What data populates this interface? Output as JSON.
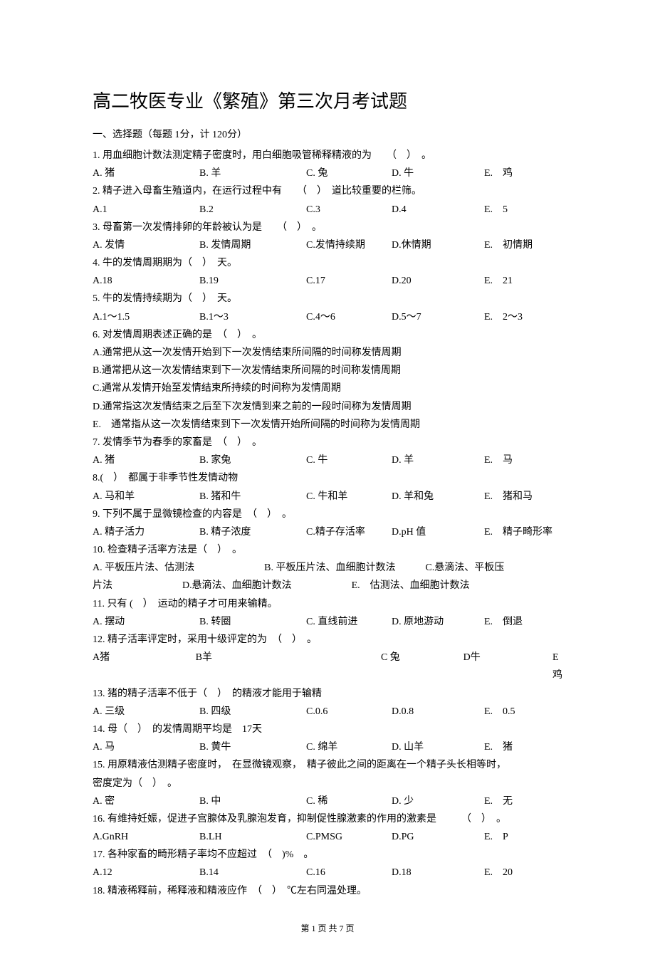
{
  "title": "高二牧医专业《繁殖》第三次月考试题",
  "section_header": "一、选择题（每题 1分，计 120分）",
  "footer": "第 1 页 共 7 页",
  "q1": {
    "text": "1. 用血细胞计数法测定精子密度时，用白细胞吸管稀释精液的为　　（　）　。",
    "a": "A. 猪",
    "b": "B. 羊",
    "c": "C. 兔",
    "d": "D. 牛",
    "e": "E.　鸡"
  },
  "q2": {
    "text": "2. 精子进入母畜生殖道内，在运行过程中有　　（　）　道比较重要的栏筛。",
    "a": "A.1",
    "b": "B.2",
    "c": "C.3",
    "d": "D.4",
    "e": "E.　5"
  },
  "q3": {
    "text": "3. 母畜第一次发情排卵的年龄被认为是　　（　）　。",
    "a": "A. 发情",
    "b": "B. 发情周期",
    "c": "C.发情持续期",
    "d": "D.休情期",
    "e": "E.　初情期"
  },
  "q4": {
    "text": "4. 牛的发情周期期为（　）　天。",
    "a": "A.18",
    "b": "B.19",
    "c": "C.17",
    "d": "D.20",
    "e": "E.　21"
  },
  "q5": {
    "text": "5. 牛的发情持续期为（　）　天。",
    "a": "A.1～1.5",
    "b": "B.1～3",
    "c": "C.4～6",
    "d": "D.5～7",
    "e": "E.　2～3"
  },
  "q6": {
    "text": "6. 对发情周期表述正确的是　（　）　。",
    "a": "A.通常把从这一次发情开始到下一次发情结束所间隔的时间称发情周期",
    "b": "B.通常把从这一次发情结束到下一次发情结束所间隔的时间称发情周期",
    "c": "C.通常从发情开始至发情结束所持续的时间称为发情周期",
    "d": "D.通常指这次发情结束之后至下次发情到来之前的一段时间称为发情周期",
    "e": "E.　通常指从这一次发情结束到下一次发情开始所间隔的时间称为发情周期"
  },
  "q7": {
    "text": "7. 发情季节为春季的家畜是　（　）　。",
    "a": "A. 猪",
    "b": "B. 家兔",
    "c": "C. 牛",
    "d": "D. 羊",
    "e": "E.　马"
  },
  "q8": {
    "text": "8.(　）　都属于非季节性发情动物",
    "a": "A. 马和羊",
    "b": "B. 猪和牛",
    "c": "C. 牛和羊",
    "d": "D. 羊和兔",
    "e": "E.　猪和马"
  },
  "q9": {
    "text": "9. 下列不属于显微镜检查的内容是　（　）　。",
    "a": "A. 精子活力",
    "b": "B. 精子浓度",
    "c": "C.精子存活率",
    "d": "D.pH 值",
    "e": "E.　精子畸形率"
  },
  "q10": {
    "text": "10. 检查精子活率方法是（　）　。",
    "line1": "A. 平板压片法、估测法　　　　　　　B. 平板压片法、血细胞计数法　　　C.悬滴法、平板压",
    "line2": "片法　　　　　　　D.悬滴法、血细胞计数法　　　　　　E.　估测法、血细胞计数法"
  },
  "q11": {
    "text": "11. 只有 (　）　运动的精子才可用来输精。",
    "a": "A. 摆动",
    "b": "B. 转圈",
    "c": "C. 直线前进",
    "d": "D. 原地游动",
    "e": "E.　倒退"
  },
  "q12": {
    "text": "12. 精子活率评定时，采用十级评定的为　（　）　。",
    "a": "A猪",
    "b": "B羊",
    "c": "C 兔",
    "d": "D牛",
    "e": "E 鸡"
  },
  "q13": {
    "text": "13. 猪的精子活率不低于（　）　的精液才能用于输精",
    "a": "A. 三级",
    "b": "B. 四级",
    "c": "C.0.6",
    "d": "D.0.8",
    "e": "E.　0.5"
  },
  "q14": {
    "text": "14. 母（　）　的发情周期平均是　17天",
    "a": "A. 马",
    "b": "B. 黄牛",
    "c": "C. 绵羊",
    "d": "D. 山羊",
    "e": "E.　猪"
  },
  "q15": {
    "text1": "15. 用原精液估测精子密度时，　在显微镜观察，　精子彼此之间的距离在一个精子头长相等时，",
    "text2": "密度定为（　）　。",
    "a": "A. 密",
    "b": "B. 中",
    "c": "C. 稀",
    "d": "D. 少",
    "e": "E.　无"
  },
  "q16": {
    "text": "16. 有维持妊娠，促进子宫腺体及乳腺泡发育，抑制促性腺激素的作用的激素是　　　（　）　。",
    "a": "A.GnRH",
    "b": "B.LH",
    "c": "C.PMSG",
    "d": "D.PG",
    "e": "E.　P"
  },
  "q17": {
    "text": "17. 各种家畜的畸形精子率均不应超过　（　)%　。",
    "a": "A.12",
    "b": "B.14",
    "c": "C.16",
    "d": "D.18",
    "e": "E.　20"
  },
  "q18": {
    "text": "18. 精液稀释前，稀释液和精液应作　（　）　℃左右同温处理。"
  }
}
